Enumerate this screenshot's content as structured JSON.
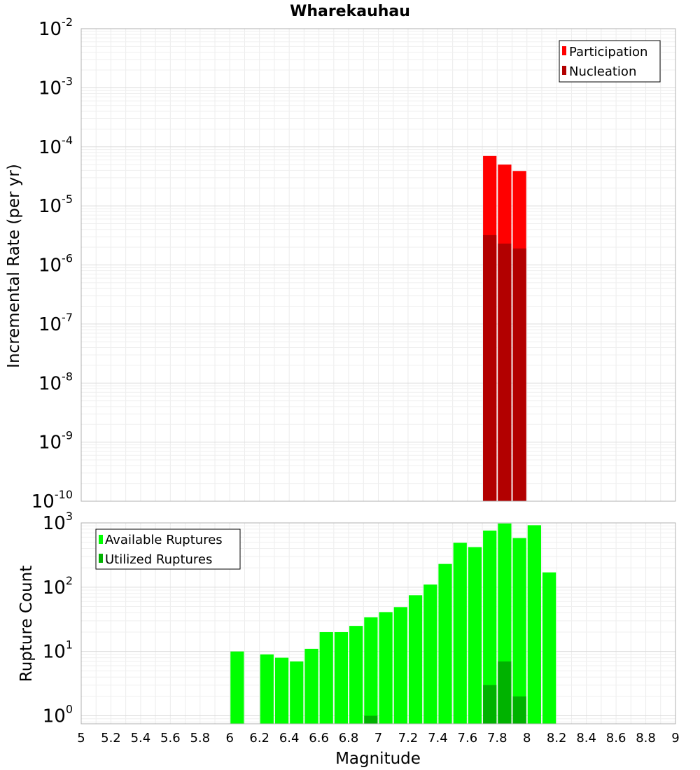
{
  "chart_data": [
    {
      "type": "bar",
      "title": "Wharekauhau",
      "xlabel": "Magnitude",
      "ylabel": "Incremental Rate (per yr)",
      "yscale": "log",
      "xlim": [
        5,
        9
      ],
      "ylim": [
        1e-10,
        0.01
      ],
      "bar_width": 0.1,
      "grid": true,
      "legend_position": "top-right",
      "y_ticks": [
        {
          "base": "10",
          "exp": "-10"
        },
        {
          "base": "10",
          "exp": "-9"
        },
        {
          "base": "10",
          "exp": "-8"
        },
        {
          "base": "10",
          "exp": "-7"
        },
        {
          "base": "10",
          "exp": "-6"
        },
        {
          "base": "10",
          "exp": "-5"
        },
        {
          "base": "10",
          "exp": "-4"
        },
        {
          "base": "10",
          "exp": "-3"
        },
        {
          "base": "10",
          "exp": "-2"
        }
      ],
      "series": [
        {
          "name": "Participation",
          "color": "#ff0000",
          "x": [
            7.75,
            7.85,
            7.95
          ],
          "values": [
            7e-05,
            5e-05,
            3.9e-05
          ]
        },
        {
          "name": "Nucleation",
          "color": "#b20000",
          "x": [
            7.75,
            7.85,
            7.95
          ],
          "values": [
            3.2e-06,
            2.3e-06,
            1.9e-06
          ]
        }
      ]
    },
    {
      "type": "bar",
      "xlabel": "Magnitude",
      "ylabel": "Rupture Count",
      "yscale": "log",
      "xlim": [
        5,
        9
      ],
      "ylim": [
        0.75,
        1000
      ],
      "bar_width": 0.1,
      "grid": true,
      "legend_position": "top-left",
      "x_ticks": [
        "5",
        "5.2",
        "5.4",
        "5.6",
        "5.8",
        "6",
        "6.2",
        "6.4",
        "6.6",
        "6.8",
        "7",
        "7.2",
        "7.4",
        "7.6",
        "7.8",
        "8",
        "8.2",
        "8.4",
        "8.6",
        "8.8",
        "9"
      ],
      "y_ticks": [
        {
          "base": "10",
          "exp": "0"
        },
        {
          "base": "10",
          "exp": "1"
        },
        {
          "base": "10",
          "exp": "2"
        },
        {
          "base": "10",
          "exp": "3"
        }
      ],
      "series": [
        {
          "name": "Available Ruptures",
          "color": "#00ff00",
          "x": [
            6.05,
            6.25,
            6.35,
            6.45,
            6.55,
            6.65,
            6.75,
            6.85,
            6.95,
            7.05,
            7.15,
            7.25,
            7.35,
            7.45,
            7.55,
            7.65,
            7.75,
            7.85,
            7.95,
            8.05,
            8.15
          ],
          "values": [
            10,
            9,
            8,
            7,
            11,
            20,
            20,
            25,
            34,
            41,
            49,
            75,
            110,
            230,
            490,
            420,
            760,
            980,
            580,
            920,
            170
          ]
        },
        {
          "name": "Utilized Ruptures",
          "color": "#00b200",
          "x": [
            6.95,
            7.75,
            7.85,
            7.95
          ],
          "values": [
            1,
            3,
            7,
            2
          ]
        }
      ]
    }
  ]
}
